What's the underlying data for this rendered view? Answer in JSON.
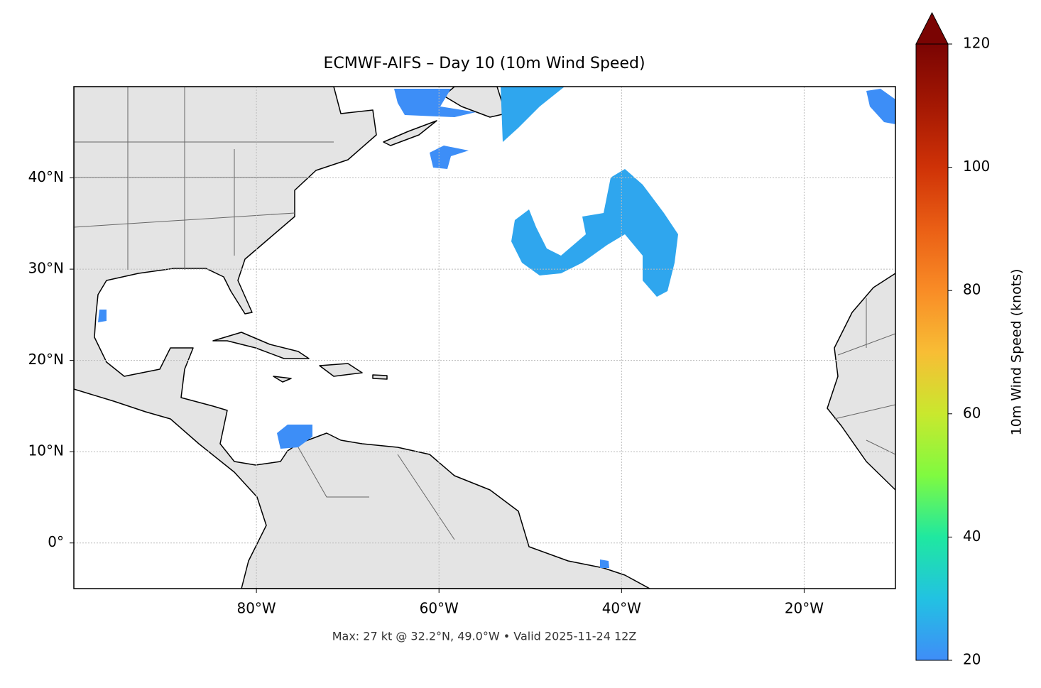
{
  "chart_data": {
    "type": "map",
    "title": "ECMWF-AIFS – Day 10 (10m Wind Speed)",
    "footer": "Max: 27 kt @ 32.2°N, 49.0°W • Valid 2025-11-24 12Z",
    "xlim": [
      -100,
      -10
    ],
    "ylim": [
      -5,
      50
    ],
    "xticks": [
      {
        "value": -80,
        "label": "80°W"
      },
      {
        "value": -60,
        "label": "60°W"
      },
      {
        "value": -40,
        "label": "40°W"
      },
      {
        "value": -20,
        "label": "20°W"
      }
    ],
    "yticks": [
      {
        "value": 0,
        "label": "0°"
      },
      {
        "value": 10,
        "label": "10°N"
      },
      {
        "value": 20,
        "label": "20°N"
      },
      {
        "value": 30,
        "label": "30°N"
      },
      {
        "value": 40,
        "label": "40°N"
      }
    ],
    "grid": true,
    "colorbar": {
      "label": "10m Wind Speed (knots)",
      "lim": [
        20,
        120
      ],
      "ticks": [
        20,
        40,
        60,
        80,
        100,
        120
      ],
      "colors": [
        "#3f8df8",
        "#22c2e2",
        "#1fe8a0",
        "#80fa40",
        "#c9e82e",
        "#f8bd35",
        "#f98c26",
        "#ea5f15",
        "#cf3207",
        "#a41803",
        "#7a0403"
      ]
    }
  }
}
